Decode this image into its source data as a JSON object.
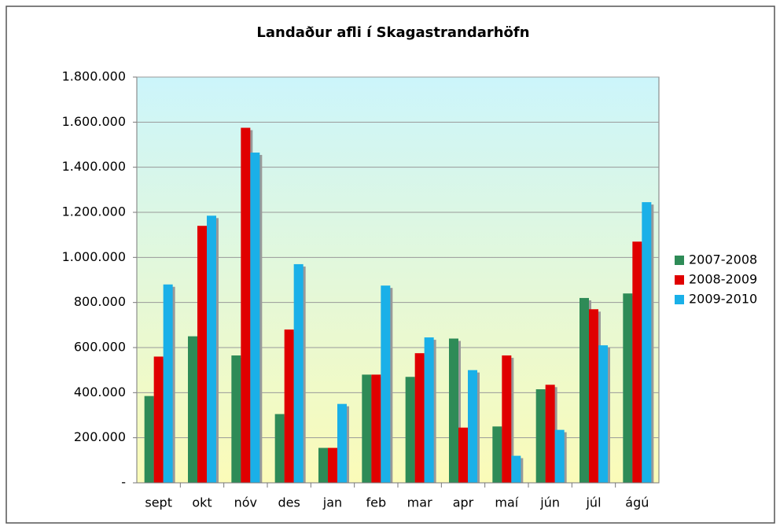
{
  "chart_data": {
    "type": "bar",
    "title": "Landaður afli í Skagastrandarhöfn",
    "categories": [
      "sept",
      "okt",
      "nóv",
      "des",
      "jan",
      "feb",
      "mar",
      "apr",
      "maí",
      "jún",
      "júl",
      "ágú"
    ],
    "series": [
      {
        "name": "2007-2008",
        "color": "#2e8b57",
        "values": [
          385000,
          650000,
          565000,
          305000,
          155000,
          480000,
          470000,
          640000,
          250000,
          415000,
          820000,
          840000
        ]
      },
      {
        "name": "2008-2009",
        "color": "#e00000",
        "values": [
          560000,
          1140000,
          1575000,
          680000,
          155000,
          480000,
          575000,
          245000,
          565000,
          435000,
          770000,
          1070000
        ]
      },
      {
        "name": "2009-2010",
        "color": "#1ab0e8",
        "values": [
          880000,
          1185000,
          1465000,
          970000,
          350000,
          875000,
          645000,
          500000,
          120000,
          235000,
          610000,
          1245000
        ]
      }
    ],
    "ylim": [
      0,
      1800000
    ],
    "yticks": [
      {
        "value": 0,
        "label": "-"
      },
      {
        "value": 200000,
        "label": "200.000"
      },
      {
        "value": 400000,
        "label": "400.000"
      },
      {
        "value": 600000,
        "label": "600.000"
      },
      {
        "value": 800000,
        "label": "800.000"
      },
      {
        "value": 1000000,
        "label": "1.000.000"
      },
      {
        "value": 1200000,
        "label": "1.200.000"
      },
      {
        "value": 1400000,
        "label": "1.400.000"
      },
      {
        "value": 1600000,
        "label": "1.600.000"
      },
      {
        "value": 1800000,
        "label": "1.800.000"
      }
    ],
    "grid": true,
    "legend": "right"
  }
}
